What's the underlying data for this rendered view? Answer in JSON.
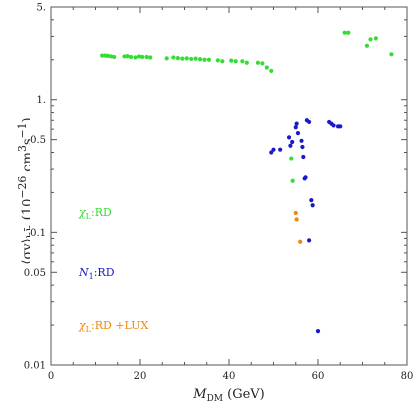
{
  "chart_data": {
    "type": "scatter",
    "xlabel": "M_DM (GeV)",
    "xlabel_main": "M",
    "xlabel_sub": "DM",
    "xlabel_rest": " (GeV)",
    "ylabel": "⟨σv⟩_bb̄ (10^-26 cm^3 s^-1)",
    "ylabel_html": "⟨σv⟩<sub>bb̄</sub> (10<sup>−26</sup> cm<sup>3</sup>s<sup>−1</sup>)",
    "xlim": [
      0,
      80
    ],
    "ylim": [
      0.01,
      5
    ],
    "yscale": "log",
    "grid": false,
    "x_ticks": [
      0,
      20,
      40,
      60,
      80
    ],
    "x_tick_labels": [
      "0",
      "20",
      "40",
      "60",
      "80"
    ],
    "y_ticks": [
      0.01,
      0.05,
      0.1,
      0.5,
      1,
      5
    ],
    "y_tick_labels": [
      "0.01",
      "0.05",
      "0.1",
      "0.5",
      "1.",
      "5."
    ],
    "series": [
      {
        "name": "χ_L:RD",
        "label_parts": [
          "χ",
          "L",
          ":RD"
        ],
        "color": "#33dd33",
        "points": [
          [
            11.5,
            2.15
          ],
          [
            12.2,
            2.15
          ],
          [
            12.8,
            2.14
          ],
          [
            13.5,
            2.12
          ],
          [
            14.2,
            2.1
          ],
          [
            16.5,
            2.12
          ],
          [
            17.2,
            2.13
          ],
          [
            18.0,
            2.1
          ],
          [
            19.0,
            2.08
          ],
          [
            19.8,
            2.12
          ],
          [
            20.5,
            2.1
          ],
          [
            21.5,
            2.1
          ],
          [
            22.3,
            2.08
          ],
          [
            26.0,
            2.05
          ],
          [
            27.5,
            2.08
          ],
          [
            28.5,
            2.06
          ],
          [
            29.5,
            2.04
          ],
          [
            30.5,
            2.05
          ],
          [
            31.5,
            2.03
          ],
          [
            32.5,
            2.04
          ],
          [
            33.5,
            2.02
          ],
          [
            34.5,
            2.0
          ],
          [
            35.5,
            2.0
          ],
          [
            37.5,
            1.98
          ],
          [
            38.5,
            1.95
          ],
          [
            40.5,
            1.97
          ],
          [
            41.5,
            1.95
          ],
          [
            43.0,
            1.95
          ],
          [
            44.0,
            1.9
          ],
          [
            46.5,
            1.9
          ],
          [
            47.5,
            1.88
          ],
          [
            48.5,
            1.75
          ],
          [
            49.5,
            1.65
          ],
          [
            54.0,
            0.36
          ],
          [
            54.3,
            0.245
          ],
          [
            66.0,
            3.2
          ],
          [
            66.8,
            3.2
          ],
          [
            71.0,
            2.55
          ],
          [
            71.8,
            2.85
          ],
          [
            73.0,
            2.9
          ],
          [
            76.5,
            2.2
          ]
        ]
      },
      {
        "name": "N_1:RD",
        "label_parts": [
          "N",
          "1",
          ":RD"
        ],
        "color": "#1a1acc",
        "points": [
          [
            49.5,
            0.4
          ],
          [
            50.0,
            0.42
          ],
          [
            51.5,
            0.42
          ],
          [
            53.5,
            0.52
          ],
          [
            53.8,
            0.45
          ],
          [
            54.2,
            0.48
          ],
          [
            55.0,
            0.62
          ],
          [
            55.2,
            0.66
          ],
          [
            55.5,
            0.56
          ],
          [
            56.3,
            0.49
          ],
          [
            56.5,
            0.44
          ],
          [
            56.7,
            0.37
          ],
          [
            57.0,
            0.255
          ],
          [
            57.2,
            0.26
          ],
          [
            57.5,
            0.7
          ],
          [
            58.0,
            0.68
          ],
          [
            58.5,
            0.175
          ],
          [
            58.8,
            0.16
          ],
          [
            62.5,
            0.68
          ],
          [
            63.0,
            0.66
          ],
          [
            63.5,
            0.64
          ],
          [
            64.5,
            0.63
          ],
          [
            65.0,
            0.63
          ],
          [
            60.0,
            0.018
          ],
          [
            58.0,
            0.087
          ]
        ]
      },
      {
        "name": "χ_L:RD +LUX",
        "label_parts": [
          "χ",
          "L",
          ":RD +LUX"
        ],
        "color": "#ee8811",
        "points": [
          [
            55.0,
            0.14
          ],
          [
            55.2,
            0.125
          ],
          [
            56.0,
            0.085
          ]
        ]
      }
    ],
    "legend": "inside-left, stacked"
  }
}
